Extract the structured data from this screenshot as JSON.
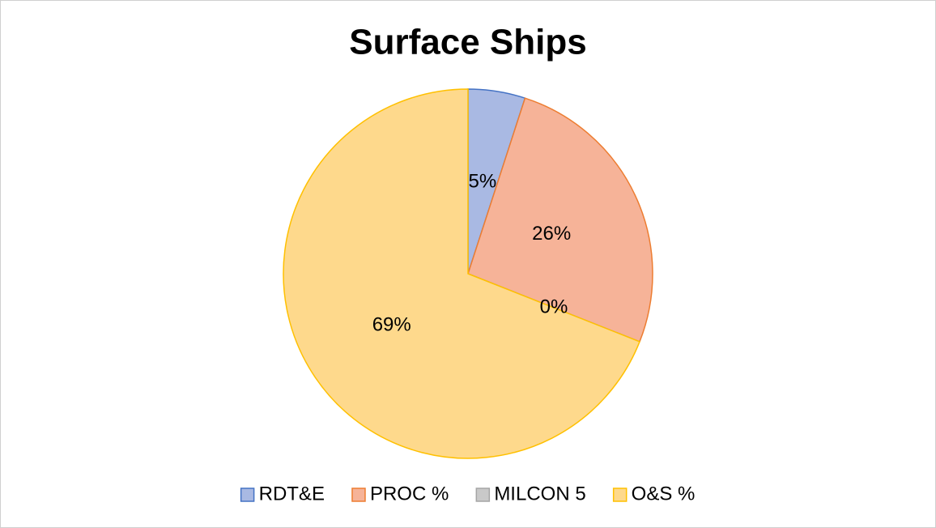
{
  "chart_data": {
    "type": "pie",
    "title": "Surface Ships",
    "categories": [
      "RDT&E",
      "PROC %",
      "MILCON 5",
      "O&S %"
    ],
    "values": [
      5,
      26,
      0,
      69
    ],
    "value_labels": [
      "5%",
      "26%",
      "0%",
      "69%"
    ],
    "colors": [
      "#a9b9e3",
      "#f6b398",
      "#c9c9c9",
      "#fed98c"
    ],
    "edge_colors": [
      "#4472c4",
      "#ed7d31",
      "#a5a5a5",
      "#ffc000"
    ],
    "legend": "bottom"
  }
}
